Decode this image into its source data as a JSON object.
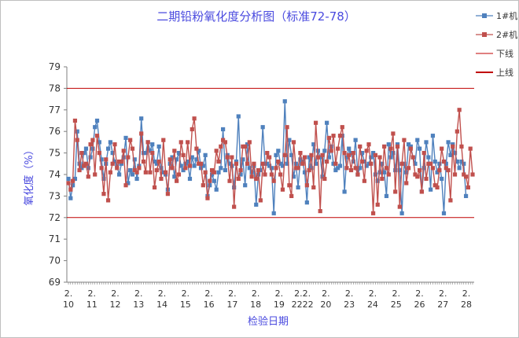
{
  "chart_data": {
    "type": "line",
    "title": "二期铅粉氧化度分析图（标准72-78）",
    "xlabel": "检验日期",
    "ylabel": "氧化度（%）",
    "ylim": [
      69,
      79
    ],
    "yticks": [
      69,
      70,
      71,
      72,
      73,
      74,
      75,
      76,
      77,
      78,
      79
    ],
    "grid": false,
    "legend_position": "top-right",
    "x_tick_labels": [
      {
        "top": "2.",
        "bottom": "10"
      },
      {
        "top": "2.",
        "bottom": "11"
      },
      {
        "top": "2.",
        "bottom": "12"
      },
      {
        "top": "2.",
        "bottom": "13"
      },
      {
        "top": "2.",
        "bottom": "14"
      },
      {
        "top": "2.",
        "bottom": "15"
      },
      {
        "top": "2.",
        "bottom": "16"
      },
      {
        "top": "2.",
        "bottom": "17"
      },
      {
        "top": "2.",
        "bottom": "18"
      },
      {
        "top": "2.",
        "bottom": "19"
      },
      {
        "top": "2.2.",
        "bottom": "2222"
      },
      {
        "top": "2.",
        "bottom": "20"
      },
      {
        "top": "2.",
        "bottom": "23"
      },
      {
        "top": "2.",
        "bottom": "24"
      },
      {
        "top": "2.",
        "bottom": "25"
      },
      {
        "top": "2.",
        "bottom": "26"
      },
      {
        "top": "2.",
        "bottom": "27"
      },
      {
        "top": "2.",
        "bottom": "28"
      }
    ],
    "series": [
      {
        "name": "1#机",
        "color": "#4f81bd",
        "marker": "square",
        "values": [
          73.8,
          72.9,
          73.5,
          73.8,
          76.0,
          74.5,
          74.3,
          75.0,
          75.2,
          74.3,
          74.8,
          75.2,
          76.2,
          76.5,
          75.5,
          74.7,
          73.8,
          74.5,
          75.2,
          75.5,
          75.0,
          74.6,
          74.4,
          74.0,
          74.5,
          74.8,
          75.7,
          73.6,
          74.2,
          74.0,
          74.7,
          73.8,
          74.4,
          76.6,
          75.0,
          75.0,
          75.5,
          75.1,
          75.4,
          74.6,
          74.5,
          75.3,
          74.3,
          74.1,
          74.0,
          73.3,
          74.5,
          74.8,
          73.9,
          74.7,
          75.0,
          74.4,
          74.2,
          74.5,
          74.6,
          73.8,
          74.8,
          74.4,
          74.7,
          75.1,
          74.3,
          74.4,
          74.9,
          73.0,
          73.5,
          74.0,
          73.7,
          73.3,
          74.1,
          74.3,
          76.1,
          74.2,
          74.9,
          74.5,
          74.4,
          73.4,
          74.6,
          76.7,
          74.0,
          74.7,
          73.5,
          75.4,
          74.3,
          74.1,
          74.4,
          72.6,
          74.0,
          74.2,
          76.2,
          74.5,
          74.5,
          74.4,
          74.3,
          72.2,
          74.9,
          75.1,
          74.5,
          74.4,
          77.4,
          74.5,
          75.6,
          74.9,
          73.9,
          74.5,
          73.4,
          74.7,
          74.6,
          74.1,
          72.7,
          74.8,
          74.3,
          75.4,
          74.5,
          75.1,
          74.8,
          73.9,
          75.1,
          76.4,
          74.8,
          75.3,
          74.5,
          74.2,
          74.3,
          74.4,
          75.8,
          73.2,
          74.8,
          75.2,
          75.0,
          74.6,
          75.6,
          74.0,
          74.3,
          75.0,
          74.6,
          74.4,
          74.5,
          74.8,
          75.0,
          74.0,
          73.7,
          74.1,
          74.5,
          74.1,
          73.0,
          75.4,
          74.8,
          75.0,
          74.2,
          75.4,
          74.2,
          72.2,
          74.5,
          74.1,
          75.4,
          75.3,
          74.8,
          74.5,
          75.6,
          75.2,
          73.2,
          74.3,
          75.5,
          74.8,
          73.3,
          75.8,
          74.6,
          74.1,
          74.5,
          73.8,
          72.2,
          74.5,
          75.5,
          74.9,
          75.4,
          75.0,
          74.6,
          74.3,
          74.6,
          74.5,
          73.0
        ]
      },
      {
        "name": "2#机",
        "color": "#c0504d",
        "marker": "square",
        "values": [
          73.6,
          73.3,
          73.7,
          76.5,
          75.6,
          74.2,
          75.0,
          74.4,
          74.5,
          73.9,
          75.4,
          75.6,
          74.0,
          75.8,
          75.0,
          74.3,
          73.1,
          74.7,
          72.8,
          74.1,
          74.5,
          75.4,
          74.3,
          74.6,
          74.6,
          75.1,
          73.5,
          74.8,
          75.6,
          75.2,
          74.2,
          74.1,
          74.3,
          75.9,
          74.6,
          74.1,
          75.5,
          74.1,
          75.0,
          73.4,
          74.2,
          74.6,
          73.8,
          75.6,
          74.1,
          73.1,
          74.7,
          74.3,
          75.1,
          73.7,
          74.0,
          75.5,
          74.9,
          74.3,
          75.5,
          74.4,
          76.1,
          76.6,
          75.2,
          74.5,
          74.5,
          73.5,
          74.1,
          72.9,
          73.7,
          74.2,
          74.1,
          75.1,
          74.6,
          75.3,
          75.6,
          75.5,
          74.8,
          73.7,
          74.8,
          72.5,
          74.5,
          73.8,
          74.2,
          75.3,
          75.3,
          74.5,
          75.5,
          73.9,
          74.5,
          73.8,
          74.2,
          72.8,
          74.5,
          74.0,
          75.0,
          74.8,
          74.0,
          73.7,
          74.3,
          74.6,
          74.0,
          73.3,
          74.9,
          76.2,
          73.5,
          73.0,
          75.5,
          74.3,
          74.3,
          75.0,
          74.5,
          74.8,
          73.5,
          74.2,
          74.9,
          73.4,
          76.4,
          74.8,
          72.3,
          74.9,
          73.8,
          74.6,
          75.7,
          75.1,
          75.8,
          74.5,
          75.2,
          75.8,
          76.2,
          75.0,
          74.3,
          74.9,
          74.2,
          75.0,
          74.3,
          74.0,
          75.3,
          74.6,
          73.7,
          75.1,
          75.4,
          74.5,
          72.2,
          74.9,
          72.6,
          74.8,
          73.8,
          75.3,
          74.3,
          74.0,
          75.2,
          75.9,
          73.2,
          75.3,
          72.5,
          74.5,
          75.6,
          73.6,
          74.3,
          75.2,
          74.8,
          74.0,
          73.9,
          74.2,
          73.2,
          75.0,
          73.8,
          74.5,
          74.5,
          74.3,
          73.5,
          73.4,
          74.2,
          75.2,
          74.6,
          74.3,
          74.2,
          72.8,
          75.3,
          74.0,
          76.0,
          77.0,
          75.3,
          74.0,
          73.9,
          73.4,
          75.2,
          74.0
        ]
      }
    ],
    "reference_lines": [
      {
        "name": "下线",
        "value": 72,
        "color": "#c00000",
        "width": 1
      },
      {
        "name": "上线",
        "value": 78,
        "color": "#c00000",
        "width": 1
      }
    ],
    "legend_line_widths": [
      1,
      2
    ]
  }
}
